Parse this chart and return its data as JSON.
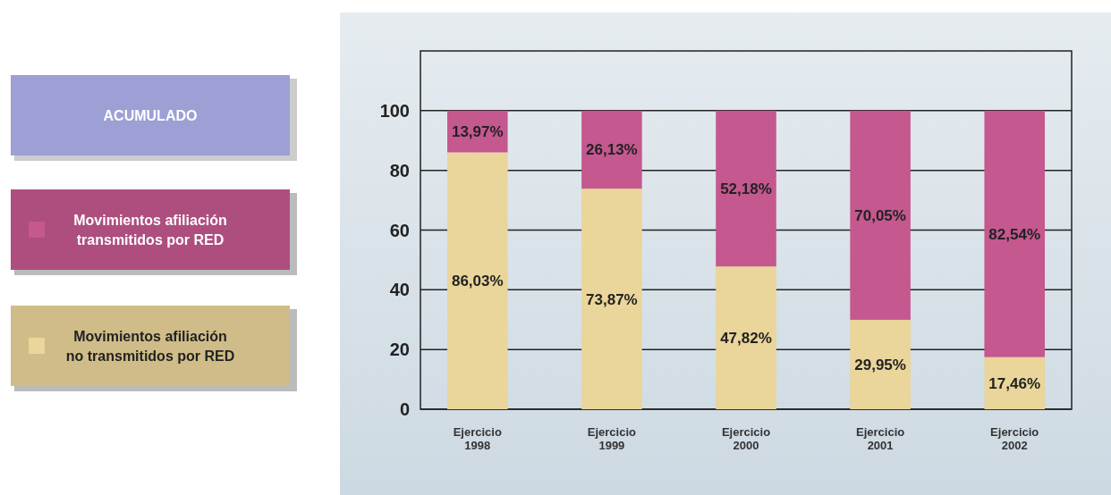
{
  "chart_data": {
    "type": "bar",
    "stacked": true,
    "legend_title": "ACUMULADO",
    "legend": "left",
    "grid": "y",
    "categories": [
      "Ejercicio\n1998",
      "Ejercicio\n1999",
      "Ejercicio\n2000",
      "Ejercicio\n2001",
      "Ejercicio\n2002"
    ],
    "ylim": [
      0,
      120
    ],
    "yticks": [
      0,
      20,
      40,
      60,
      80,
      100
    ],
    "series": [
      {
        "name": "Movimientos afiliación no transmitidos por RED",
        "color": "#ead59a",
        "values": [
          86.03,
          73.87,
          47.82,
          29.95,
          17.46
        ],
        "value_labels": [
          "86,03%",
          "73,87%",
          "47,82%",
          "29,95%",
          "17,46%"
        ]
      },
      {
        "name": "Movimientos afiliación transmitidos por RED",
        "color": "#c4588f",
        "values": [
          13.97,
          26.13,
          52.18,
          70.05,
          82.54
        ],
        "value_labels": [
          "13,97%",
          "26,13%",
          "52,18%",
          "70,05%",
          "82,54%"
        ]
      }
    ]
  }
}
